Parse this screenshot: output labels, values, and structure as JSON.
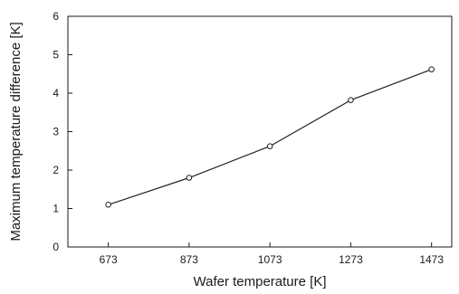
{
  "chart_data": {
    "type": "line",
    "title": "",
    "xlabel": "Wafer temperature [K]",
    "ylabel": "Maximum temperature difference [K]",
    "xlim": [
      573,
      1523
    ],
    "ylim": [
      0,
      6
    ],
    "x_ticks": [
      "673",
      "873",
      "1073",
      "1273",
      "1473"
    ],
    "y_ticks": [
      "0",
      "1",
      "2",
      "3",
      "4",
      "5",
      "6"
    ],
    "grid": false,
    "legend": "none",
    "marker": "open-circle",
    "line_color": "#222222",
    "series": [
      {
        "x": [
          673,
          873,
          1073,
          1273,
          1473
        ],
        "y": [
          1.1,
          1.8,
          2.62,
          3.82,
          4.62
        ]
      }
    ]
  }
}
